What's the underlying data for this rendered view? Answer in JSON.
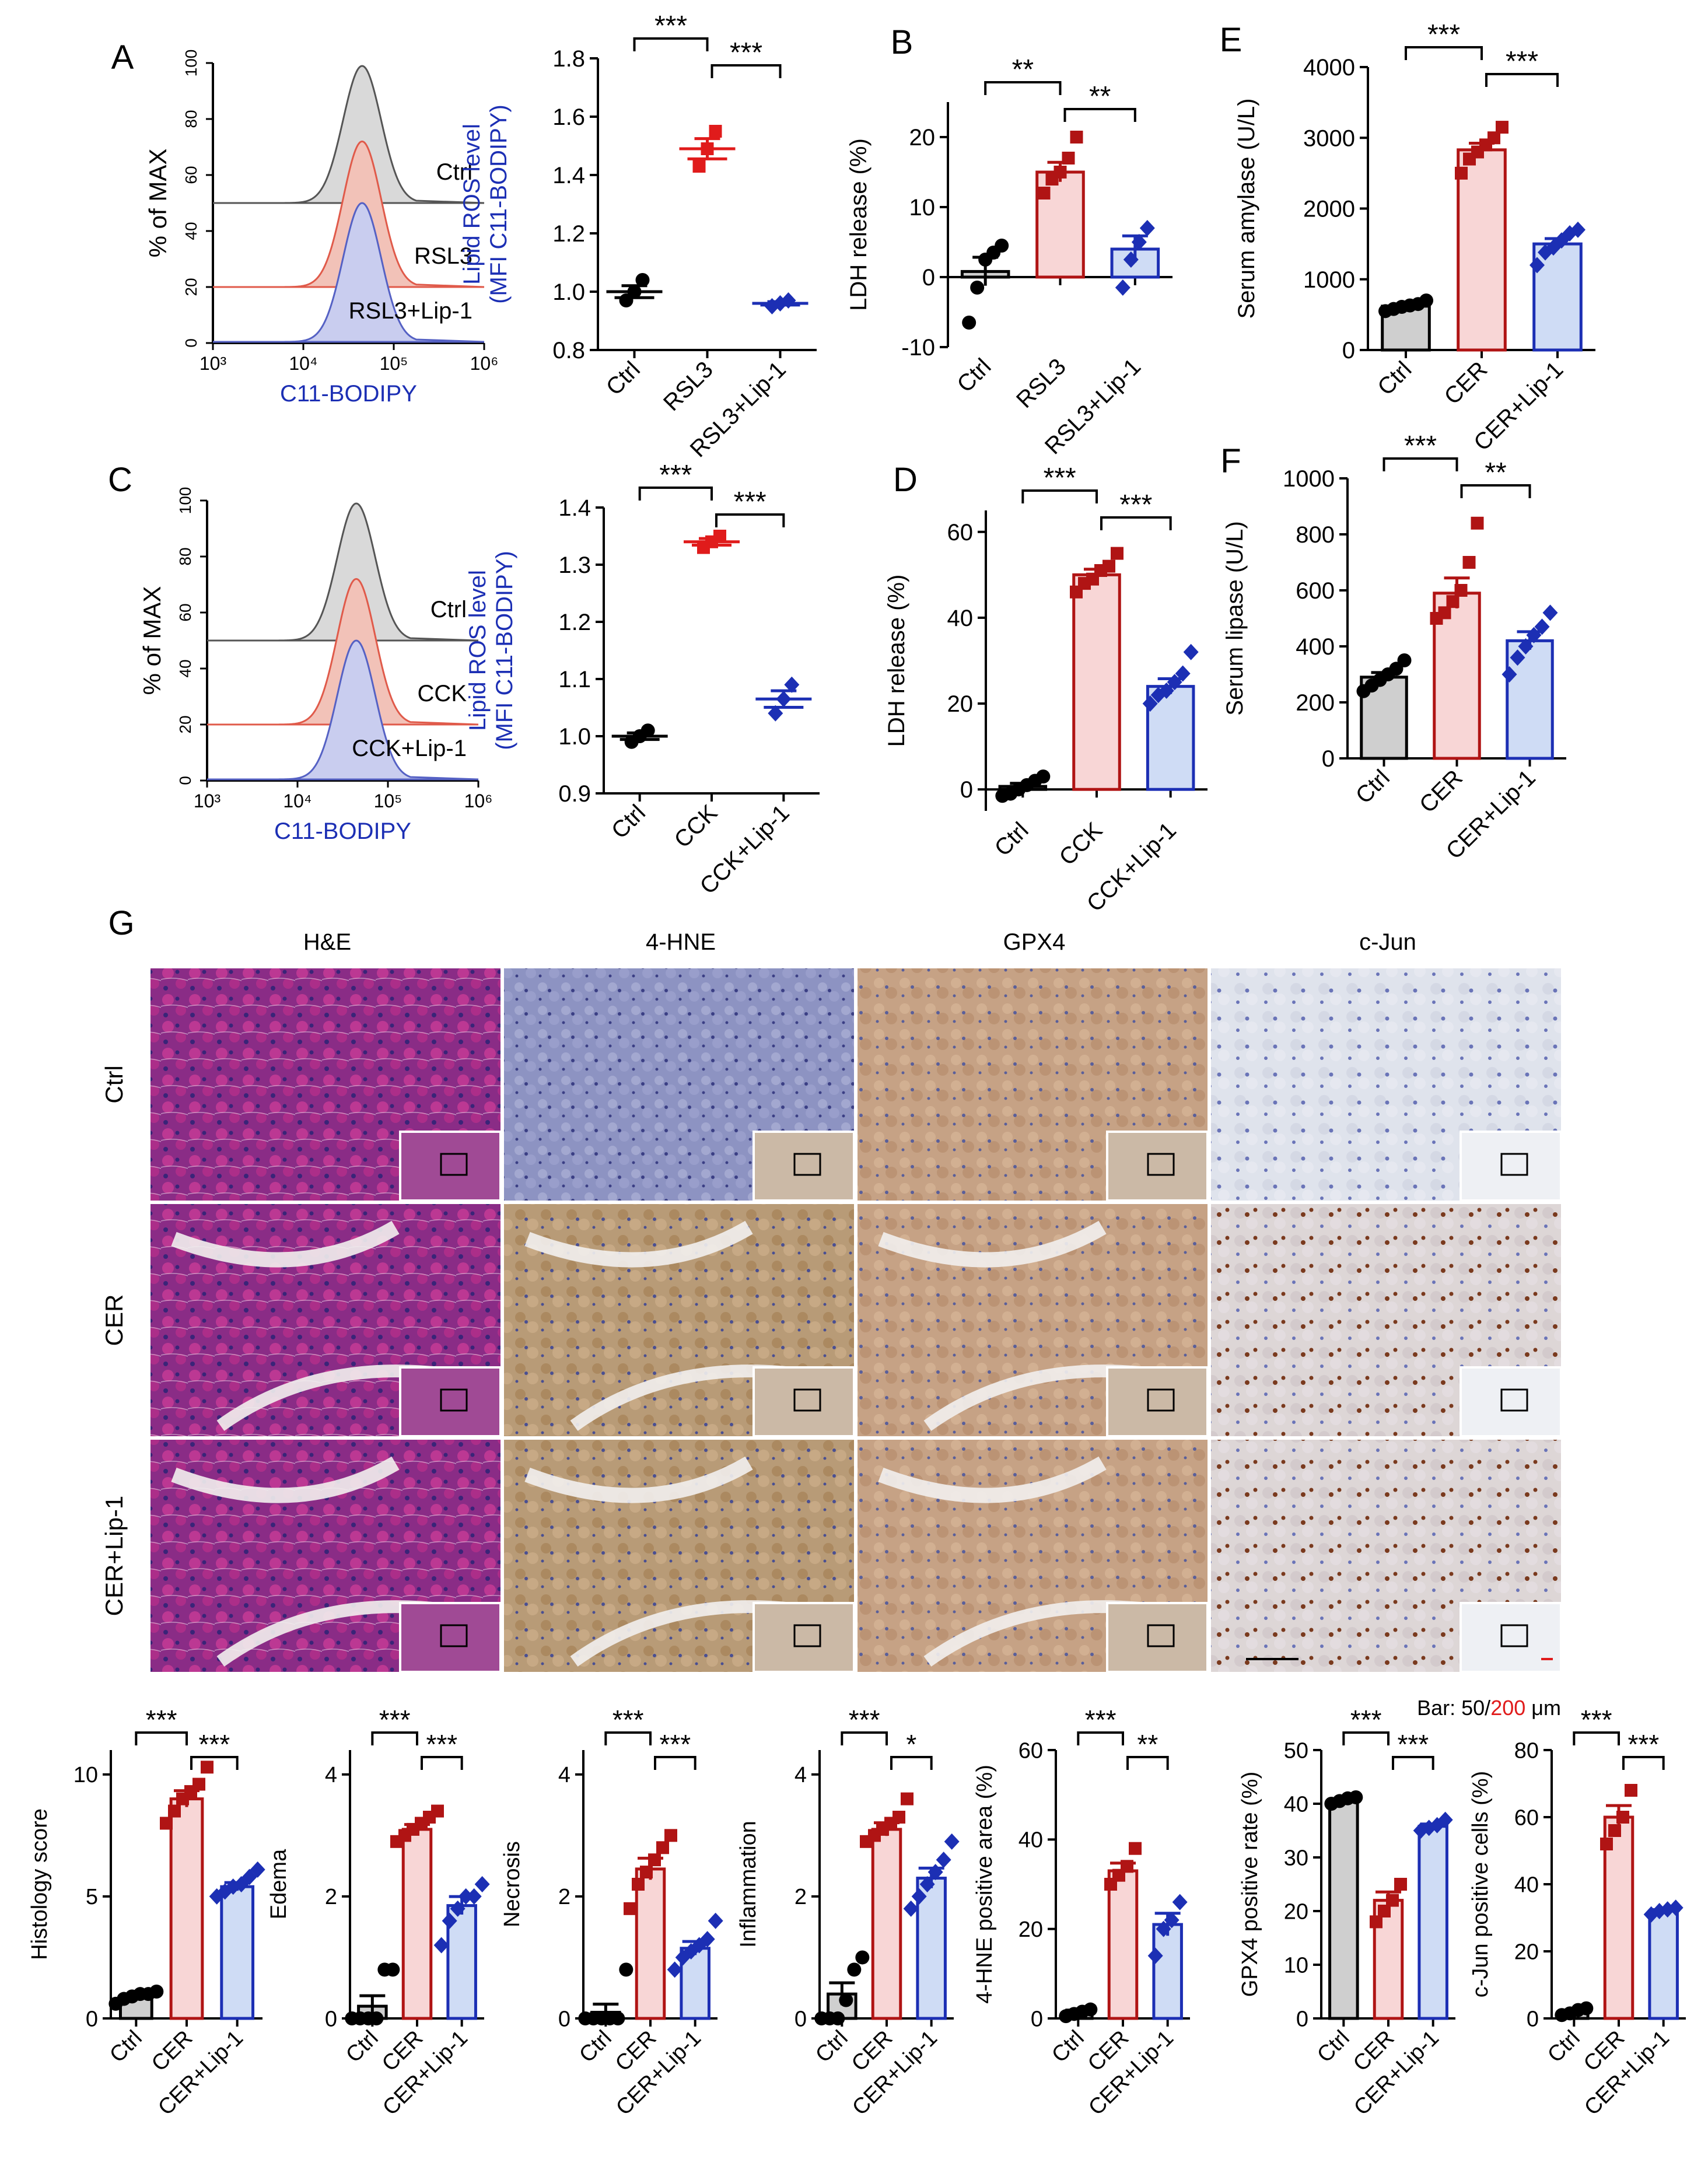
{
  "figure": {
    "panel_labels": {
      "A": "A",
      "B": "B",
      "C": "C",
      "D": "D",
      "E": "E",
      "F": "F",
      "G": "G"
    },
    "colors": {
      "ctrl": "#000000",
      "rsl3": "#e01b1b",
      "cck": "#e01b1b",
      "cer": "#b01414",
      "lip1": "#1c2fb4",
      "ctrl_fill": "#cfcfcf",
      "cer_fill": "#f8d6d6",
      "lip1_fill": "#cfdcf5",
      "he_tissue": "#8a2c86",
      "hne_tissue": "#c9a77a",
      "gpx4_tissue": "#c9a386",
      "cjun_tissue": "#dfe3ea"
    },
    "flow_A": {
      "xlabel": "C11-BODIPY",
      "ylabel": "% of MAX",
      "yticks": [
        "0",
        "20",
        "40",
        "60",
        "80",
        "100"
      ],
      "xticks": [
        "10³",
        "10⁴",
        "10⁵",
        "10⁶"
      ],
      "tracks": [
        "Ctrl",
        "RSL3",
        "RSL3+Lip-1"
      ]
    },
    "flow_C": {
      "xlabel": "C11-BODIPY",
      "ylabel": "% of MAX",
      "yticks": [
        "0",
        "20",
        "40",
        "60",
        "80",
        "100"
      ],
      "xticks": [
        "10³",
        "10⁴",
        "10⁵",
        "10⁶"
      ],
      "tracks": [
        "Ctrl",
        "CCK",
        "CCK+Lip-1"
      ]
    },
    "micro": {
      "columns": [
        "H&E",
        "4-HNE",
        "GPX4",
        "c-Jun"
      ],
      "rows": [
        "Ctrl",
        "CER",
        "CER+Lip-1"
      ],
      "scale_bar_prefix": "Bar: 50/",
      "scale_bar_red": "200",
      "scale_bar_suffix": " μm"
    }
  },
  "chart_data": [
    {
      "id": "A_ros",
      "type": "scatter",
      "ylabel": "Lipid ROS level\n(MFI C11-BODIPY)",
      "ylim": [
        0.8,
        1.8
      ],
      "yticks": [
        "0.8",
        "1.0",
        "1.2",
        "1.4",
        "1.6",
        "1.8"
      ],
      "categories": [
        "Ctrl",
        "RSL3",
        "RSL3+Lip-1"
      ],
      "series": [
        {
          "means": [
            1.0,
            1.49,
            0.96
          ],
          "points": [
            [
              0.97,
              1.0,
              1.04
            ],
            [
              1.43,
              1.49,
              1.55
            ],
            [
              0.95,
              0.96,
              0.97
            ]
          ]
        }
      ],
      "sig": [
        {
          "a": 0,
          "b": 1,
          "label": "***"
        },
        {
          "a": 1,
          "b": 2,
          "label": "***"
        }
      ]
    },
    {
      "id": "B_ldh",
      "type": "bar",
      "ylabel": "LDH release (%)",
      "ylim": [
        -10,
        25
      ],
      "yticks": [
        "-10",
        "0",
        "10",
        "20"
      ],
      "categories": [
        "Ctrl",
        "RSL3",
        "RSL3+Lip-1"
      ],
      "series": [
        {
          "means": [
            0.8,
            15,
            4
          ],
          "points": [
            [
              -6.5,
              -1.5,
              2.5,
              3.5,
              4.5
            ],
            [
              12,
              14,
              15,
              17,
              20
            ],
            [
              -1.5,
              2.5,
              5,
              7
            ]
          ]
        }
      ],
      "sig": [
        {
          "a": 0,
          "b": 1,
          "label": "**"
        },
        {
          "a": 1,
          "b": 2,
          "label": "**"
        }
      ]
    },
    {
      "id": "C_ros",
      "type": "scatter",
      "ylabel": "Lipid ROS level\n(MFI C11-BODIPY)",
      "ylim": [
        0.9,
        1.4
      ],
      "yticks": [
        "0.9",
        "1.0",
        "1.1",
        "1.2",
        "1.3",
        "1.4"
      ],
      "categories": [
        "Ctrl",
        "CCK",
        "CCK+Lip-1"
      ],
      "series": [
        {
          "means": [
            1.0,
            1.34,
            1.065
          ],
          "points": [
            [
              0.99,
              1.0,
              1.01
            ],
            [
              1.33,
              1.34,
              1.35
            ],
            [
              1.04,
              1.065,
              1.09
            ]
          ]
        }
      ],
      "sig": [
        {
          "a": 0,
          "b": 1,
          "label": "***"
        },
        {
          "a": 1,
          "b": 2,
          "label": "***"
        }
      ]
    },
    {
      "id": "D_ldh",
      "type": "bar",
      "ylabel": "LDH release (%)",
      "ylim": [
        -5,
        65
      ],
      "yticks": [
        "0",
        "20",
        "40",
        "60"
      ],
      "categories": [
        "Ctrl",
        "CCK",
        "CCK+Lip-1"
      ],
      "series": [
        {
          "means": [
            0.7,
            50,
            24
          ],
          "points": [
            [
              -1.5,
              -1,
              0,
              1,
              2,
              3
            ],
            [
              46,
              48,
              49,
              51,
              52,
              55
            ],
            [
              20,
              22,
              23,
              25,
              27,
              32
            ]
          ]
        }
      ],
      "sig": [
        {
          "a": 0,
          "b": 1,
          "label": "***"
        },
        {
          "a": 1,
          "b": 2,
          "label": "***"
        }
      ]
    },
    {
      "id": "E_amylase",
      "type": "bar",
      "ylabel": "Serum amylase (U/L)",
      "ylim": [
        0,
        4000
      ],
      "yticks": [
        "0",
        "1000",
        "2000",
        "3000",
        "4000"
      ],
      "categories": [
        "Ctrl",
        "CER",
        "CER+Lip-1"
      ],
      "series": [
        {
          "means": [
            620,
            2830,
            1500
          ],
          "points": [
            [
              550,
              580,
              610,
              630,
              650,
              700
            ],
            [
              2500,
              2700,
              2800,
              2900,
              3000,
              3150
            ],
            [
              1200,
              1380,
              1450,
              1550,
              1650,
              1700
            ]
          ]
        }
      ],
      "sig": [
        {
          "a": 0,
          "b": 1,
          "label": "***"
        },
        {
          "a": 1,
          "b": 2,
          "label": "***"
        }
      ]
    },
    {
      "id": "F_lipase",
      "type": "bar",
      "ylabel": "Serum lipase (U/L)",
      "ylim": [
        0,
        1000
      ],
      "yticks": [
        "0",
        "200",
        "400",
        "600",
        "800",
        "1000"
      ],
      "categories": [
        "Ctrl",
        "CER",
        "CER+Lip-1"
      ],
      "series": [
        {
          "means": [
            290,
            590,
            420
          ],
          "points": [
            [
              240,
              260,
              280,
              300,
              320,
              350
            ],
            [
              500,
              520,
              560,
              600,
              700,
              840
            ],
            [
              300,
              360,
              400,
              440,
              470,
              520
            ]
          ]
        }
      ],
      "sig": [
        {
          "a": 0,
          "b": 1,
          "label": "***"
        },
        {
          "a": 1,
          "b": 2,
          "label": "**"
        }
      ]
    },
    {
      "id": "G_histology",
      "type": "bar",
      "ylabel": "Histology score",
      "ylim": [
        0,
        11
      ],
      "yticks": [
        "0",
        "5",
        "10"
      ],
      "categories": [
        "Ctrl",
        "CER",
        "CER+Lip-1"
      ],
      "series": [
        {
          "means": [
            0.9,
            9,
            5.4
          ],
          "points": [
            [
              0.6,
              0.8,
              0.9,
              1.0,
              1.0,
              1.1
            ],
            [
              8.0,
              8.5,
              9.0,
              9.3,
              9.6,
              10.3
            ],
            [
              5.0,
              5.2,
              5.4,
              5.5,
              5.8,
              6.1
            ]
          ]
        }
      ],
      "sig": [
        {
          "a": 0,
          "b": 1,
          "label": "***"
        },
        {
          "a": 1,
          "b": 2,
          "label": "***"
        }
      ]
    },
    {
      "id": "G_edema",
      "type": "bar",
      "ylabel": "Edema",
      "ylim": [
        0,
        4.4
      ],
      "yticks": [
        "0",
        "2",
        "4"
      ],
      "categories": [
        "Ctrl",
        "CER",
        "CER+Lip-1"
      ],
      "series": [
        {
          "means": [
            0.2,
            3.1,
            1.85
          ],
          "points": [
            [
              0,
              0,
              0,
              0,
              0.8,
              0.8
            ],
            [
              2.9,
              3.0,
              3.1,
              3.2,
              3.3,
              3.4
            ],
            [
              1.2,
              1.6,
              1.8,
              2.0,
              2.0,
              2.2
            ]
          ]
        }
      ],
      "sig": [
        {
          "a": 0,
          "b": 1,
          "label": "***"
        },
        {
          "a": 1,
          "b": 2,
          "label": "***"
        }
      ]
    },
    {
      "id": "G_necrosis",
      "type": "bar",
      "ylabel": "Necrosis",
      "ylim": [
        0,
        4.4
      ],
      "yticks": [
        "0",
        "2",
        "4"
      ],
      "categories": [
        "Ctrl",
        "CER",
        "CER+Lip-1"
      ],
      "series": [
        {
          "means": [
            0.1,
            2.45,
            1.15
          ],
          "points": [
            [
              0,
              0,
              0,
              0,
              0,
              0.8
            ],
            [
              1.8,
              2.2,
              2.4,
              2.6,
              2.8,
              3.0
            ],
            [
              0.8,
              1.0,
              1.1,
              1.2,
              1.3,
              1.6
            ]
          ]
        }
      ],
      "sig": [
        {
          "a": 0,
          "b": 1,
          "label": "***"
        },
        {
          "a": 1,
          "b": 2,
          "label": "***"
        }
      ]
    },
    {
      "id": "G_inflammation",
      "type": "bar",
      "ylabel": "Inflammation",
      "ylim": [
        0,
        4.4
      ],
      "yticks": [
        "0",
        "2",
        "4"
      ],
      "categories": [
        "Ctrl",
        "CER",
        "CER+Lip-1"
      ],
      "series": [
        {
          "means": [
            0.4,
            3.1,
            2.3
          ],
          "points": [
            [
              0,
              0,
              0,
              0.3,
              0.8,
              1.0
            ],
            [
              2.9,
              3.0,
              3.1,
              3.2,
              3.3,
              3.6
            ],
            [
              1.8,
              2.0,
              2.2,
              2.4,
              2.6,
              2.9
            ]
          ]
        }
      ],
      "sig": [
        {
          "a": 0,
          "b": 1,
          "label": "***"
        },
        {
          "a": 1,
          "b": 2,
          "label": "*"
        }
      ]
    },
    {
      "id": "G_hne",
      "type": "bar",
      "ylabel": "4-HNE positive area (%)",
      "ylim": [
        0,
        60
      ],
      "yticks": [
        "0",
        "20",
        "40",
        "60"
      ],
      "categories": [
        "Ctrl",
        "CER",
        "CER+Lip-1"
      ],
      "series": [
        {
          "means": [
            1.5,
            33,
            21
          ],
          "points": [
            [
              0.5,
              1,
              1.5,
              2
            ],
            [
              30,
              32,
              34,
              38
            ],
            [
              14,
              20,
              22,
              26
            ]
          ]
        }
      ],
      "sig": [
        {
          "a": 0,
          "b": 1,
          "label": "***"
        },
        {
          "a": 1,
          "b": 2,
          "label": "**"
        }
      ]
    },
    {
      "id": "G_gpx4",
      "type": "bar",
      "ylabel": "GPX4 positive rate (%)",
      "ylim": [
        0,
        50
      ],
      "yticks": [
        "0",
        "10",
        "20",
        "30",
        "40",
        "50"
      ],
      "categories": [
        "Ctrl",
        "CER",
        "CER+Lip-1"
      ],
      "series": [
        {
          "means": [
            40.5,
            22,
            35.8
          ],
          "points": [
            [
              40,
              40.5,
              41,
              41.2
            ],
            [
              18,
              20,
              22,
              25
            ],
            [
              35,
              35.5,
              36,
              37
            ]
          ]
        }
      ],
      "sig": [
        {
          "a": 0,
          "b": 1,
          "label": "***"
        },
        {
          "a": 1,
          "b": 2,
          "label": "***"
        }
      ]
    },
    {
      "id": "G_cjun",
      "type": "bar",
      "ylabel": "c-Jun positive cells (%)",
      "ylim": [
        0,
        80
      ],
      "yticks": [
        "0",
        "20",
        "40",
        "60",
        "80"
      ],
      "categories": [
        "Ctrl",
        "CER",
        "CER+Lip-1"
      ],
      "series": [
        {
          "means": [
            2,
            60,
            32
          ],
          "points": [
            [
              1,
              1.5,
              2.5,
              3
            ],
            [
              52,
              56,
              60,
              68
            ],
            [
              31,
              32,
              32.5,
              33
            ]
          ]
        }
      ],
      "sig": [
        {
          "a": 0,
          "b": 1,
          "label": "***"
        },
        {
          "a": 1,
          "b": 2,
          "label": "***"
        }
      ]
    }
  ]
}
